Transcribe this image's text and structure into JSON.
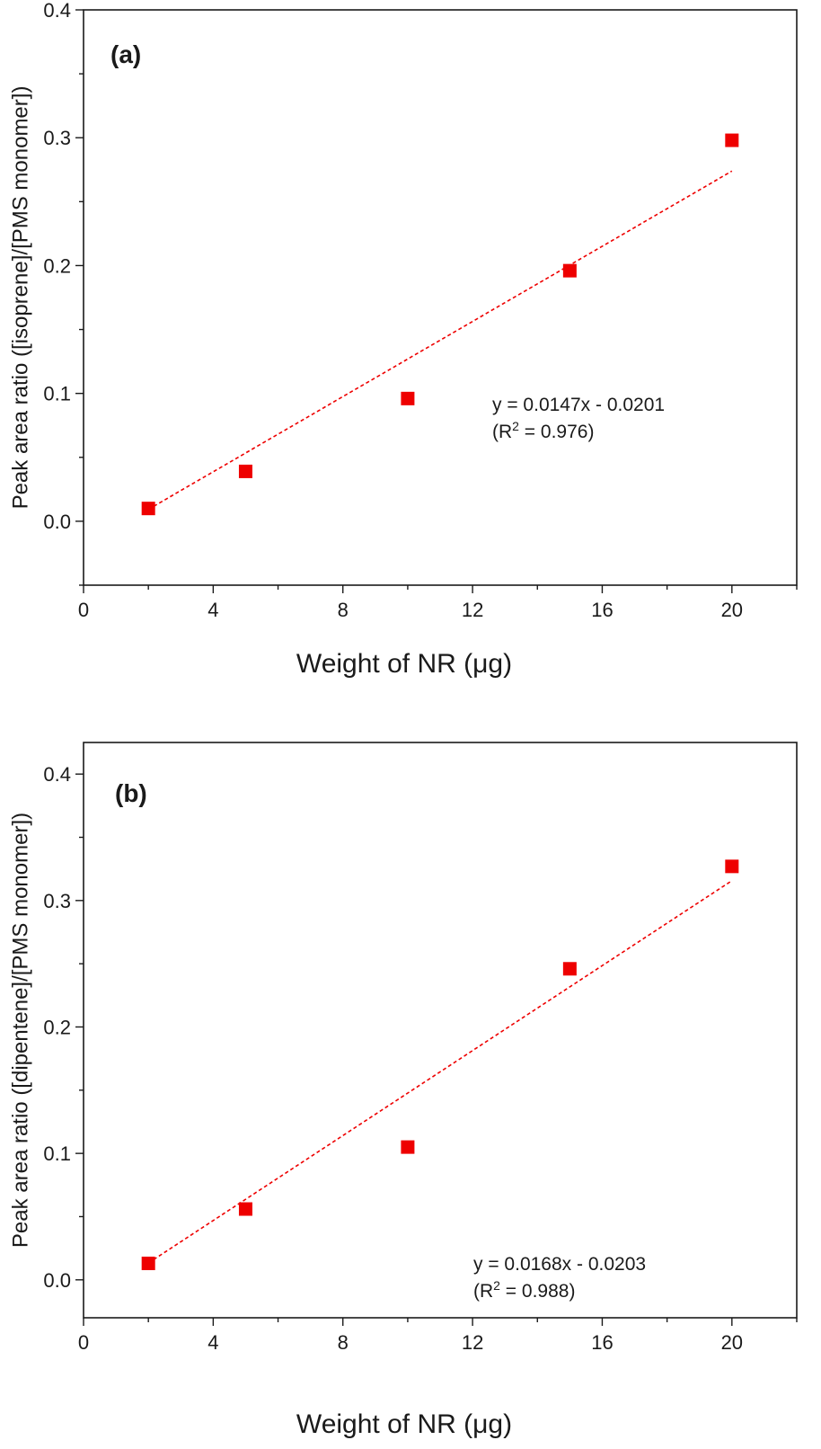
{
  "chart_data": [
    {
      "type": "scatter",
      "panel_label": "(a)",
      "xlabel": "Weight of NR (μg)",
      "ylabel": "Peak area ratio ([isoprene]/[PMS monomer])",
      "xlim": [
        0,
        22
      ],
      "ylim": [
        -0.05,
        0.4
      ],
      "xticks": [
        0,
        4,
        8,
        12,
        16,
        20
      ],
      "yticks": [
        0.0,
        0.1,
        0.2,
        0.3,
        0.4
      ],
      "ytick_labels": [
        "0.0",
        "0.1",
        "0.2",
        "0.3",
        "0.4"
      ],
      "x": [
        2,
        5,
        10,
        15,
        20
      ],
      "y": [
        0.01,
        0.039,
        0.096,
        0.196,
        0.298
      ],
      "marker_color": "#ee0000",
      "fit": {
        "slope": 0.0147,
        "intercept": -0.0201,
        "x_range": [
          2,
          20
        ],
        "color": "#ee0000"
      },
      "equation": "y = 0.0147x - 0.0201",
      "r2_prefix": "(R",
      "r2_sup": "2",
      "r2_suffix": " = 0.976)",
      "grid": false
    },
    {
      "type": "scatter",
      "panel_label": "(b)",
      "xlabel": "Weight of NR (μg)",
      "ylabel": "Peak area ratio ([dipentene]/[PMS monomer])",
      "xlim": [
        0,
        22
      ],
      "ylim": [
        -0.03,
        0.425
      ],
      "xticks": [
        0,
        4,
        8,
        12,
        16,
        20
      ],
      "yticks": [
        0.0,
        0.1,
        0.2,
        0.3,
        0.4
      ],
      "ytick_labels": [
        "0.0",
        "0.1",
        "0.2",
        "0.3",
        "0.4"
      ],
      "x": [
        2,
        5,
        10,
        15,
        20
      ],
      "y": [
        0.013,
        0.056,
        0.105,
        0.246,
        0.327
      ],
      "marker_color": "#ee0000",
      "fit": {
        "slope": 0.0168,
        "intercept": -0.0203,
        "x_range": [
          2,
          20
        ],
        "color": "#ee0000"
      },
      "equation": "y = 0.0168x - 0.0203",
      "r2_prefix": "(R",
      "r2_sup": "2",
      "r2_suffix": " = 0.988)",
      "grid": false
    }
  ]
}
